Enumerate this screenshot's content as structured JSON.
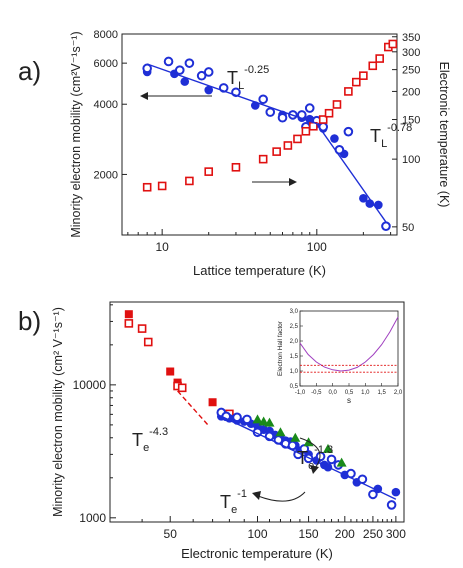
{
  "panels": {
    "a": {
      "label": "a)"
    },
    "b": {
      "label": "b)"
    }
  },
  "colors": {
    "blue": "#1f2fd6",
    "red": "#e01010",
    "green": "#1a8a1a",
    "purple": "#a040c0",
    "axis": "#222222"
  },
  "chart_data": [
    {
      "type": "scatter",
      "panel": "a",
      "xlabel": "Lattice temperature (K)",
      "ylabel": "Minority electron mobility (cm²V⁻¹s⁻¹)",
      "y2label": "Electronic temperature (K)",
      "xscale": "log",
      "yscale": "log",
      "y2scale": "log",
      "xlim": [
        5.5,
        330
      ],
      "ylim": [
        1100,
        8000
      ],
      "y2lim": [
        46,
        360
      ],
      "xticks": [
        10,
        100
      ],
      "yticks": [
        2000,
        4000,
        6000,
        8000
      ],
      "y2ticks": [
        50,
        100,
        150,
        200,
        250,
        300,
        350
      ],
      "annotations": [
        {
          "text": "T",
          "sub": "L",
          "sup": "-0.25"
        },
        {
          "text": "T",
          "sub": "L",
          "sup": "-0.78"
        }
      ],
      "series": [
        {
          "marker": "filled-circle",
          "color": "blue",
          "x": [
            8,
            12,
            14,
            20,
            40,
            60,
            80,
            90,
            100,
            110,
            130,
            150,
            200,
            220,
            250
          ],
          "y": [
            5500,
            5400,
            5000,
            4600,
            3950,
            3600,
            3500,
            3450,
            3300,
            3150,
            2850,
            2450,
            1580,
            1500,
            1480
          ]
        },
        {
          "marker": "open-circle",
          "color": "blue",
          "x": [
            8,
            11,
            13,
            15,
            18,
            20,
            25,
            30,
            45,
            50,
            60,
            70,
            80,
            85,
            90,
            100,
            110,
            140,
            160,
            280
          ],
          "y": [
            5700,
            6100,
            5600,
            6000,
            5300,
            5500,
            4700,
            4500,
            4200,
            3700,
            3500,
            3600,
            3600,
            3200,
            3850,
            3400,
            3200,
            2550,
            3050,
            1200
          ]
        },
        {
          "marker": "open-square",
          "color": "red",
          "axis": "y2",
          "x": [
            8,
            10,
            15,
            20,
            30,
            45,
            55,
            65,
            75,
            85,
            95,
            110,
            120,
            135,
            160,
            180,
            200,
            230,
            255,
            290,
            310
          ],
          "y": [
            75,
            76,
            80,
            88,
            92,
            100,
            108,
            115,
            123,
            133,
            140,
            150,
            160,
            175,
            200,
            220,
            235,
            260,
            280,
            315,
            325
          ]
        },
        {
          "type": "line",
          "color": "blue",
          "x": [
            8,
            100
          ],
          "y": [
            5950,
            3300
          ]
        },
        {
          "type": "line",
          "color": "blue",
          "x": [
            100,
            280
          ],
          "y": [
            3300,
            1250
          ]
        }
      ]
    },
    {
      "type": "scatter",
      "panel": "b",
      "xlabel": "Electronic temperature (K)",
      "ylabel": "Minority electron mobility (cm² V⁻¹s⁻¹)",
      "xscale": "log",
      "yscale": "log",
      "xlim": [
        31,
        320
      ],
      "ylim": [
        930,
        42000
      ],
      "xticks": [
        50,
        100,
        150,
        200,
        250,
        300
      ],
      "yticks": [
        1000,
        10000
      ],
      "annotations": [
        {
          "text": "T",
          "sub": "e",
          "sup": "-4.3"
        },
        {
          "text": "T",
          "sub": "e",
          "sup": "-1.3"
        },
        {
          "text": "T",
          "sub": "e",
          "sup": "-1"
        }
      ],
      "series": [
        {
          "marker": "filled-square",
          "color": "red",
          "x": [
            36,
            50,
            53,
            70
          ],
          "y": [
            34000,
            12600,
            10400,
            7400
          ]
        },
        {
          "marker": "open-square",
          "color": "red",
          "x": [
            36,
            40,
            42,
            53,
            55,
            80
          ],
          "y": [
            29000,
            26500,
            21000,
            9800,
            9500,
            6050
          ]
        },
        {
          "marker": "filled-circle",
          "color": "blue",
          "x": [
            75,
            80,
            85,
            90,
            95,
            100,
            105,
            110,
            115,
            120,
            125,
            130,
            135,
            140,
            150,
            160,
            170,
            175,
            200,
            220,
            260,
            300
          ],
          "y": [
            5800,
            5600,
            5400,
            5300,
            5100,
            4900,
            4600,
            4500,
            4200,
            4000,
            3800,
            3750,
            3500,
            3200,
            3000,
            2700,
            2500,
            2400,
            2100,
            1850,
            1650,
            1560
          ]
        },
        {
          "marker": "open-circle",
          "color": "blue",
          "x": [
            75,
            78,
            85,
            92,
            100,
            110,
            118,
            125,
            132,
            138,
            145,
            150,
            165,
            180,
            190,
            210,
            230,
            250,
            290
          ],
          "y": [
            6200,
            5800,
            5700,
            5500,
            4400,
            4100,
            3850,
            3600,
            3500,
            3000,
            3300,
            2800,
            2900,
            2750,
            2500,
            2150,
            1950,
            1500,
            1250
          ]
        },
        {
          "marker": "filled-triangle",
          "color": "green",
          "x": [
            100,
            105,
            110,
            120,
            135,
            150,
            175,
            195
          ],
          "y": [
            5500,
            5300,
            5200,
            4400,
            4000,
            3700,
            3300,
            2600
          ]
        },
        {
          "type": "line",
          "color": "blue",
          "x": [
            75,
            300
          ],
          "y": [
            5800,
            1380
          ]
        },
        {
          "type": "dashed-line",
          "color": "red",
          "x": [
            53,
            68
          ],
          "y": [
            9000,
            4900
          ]
        }
      ]
    },
    {
      "type": "line",
      "panel": "b-inset",
      "xlabel": "s",
      "ylabel": "Electron Hall factor",
      "xlim": [
        -1.0,
        2.0
      ],
      "ylim": [
        0.5,
        3.0
      ],
      "xtick_labels": [
        "-1,0",
        "-0,5",
        "0,0",
        "0,5",
        "1,0",
        "1,5",
        "2,0"
      ],
      "ytick_labels": [
        "0,5",
        "1,0",
        "1,5",
        "2,0",
        "2,5",
        "3,0"
      ],
      "series": [
        {
          "type": "line",
          "color": "purple",
          "x": [
            -1.0,
            -0.75,
            -0.5,
            -0.25,
            0.0,
            0.25,
            0.5,
            0.75,
            1.0,
            1.25,
            1.5,
            1.75,
            2.0
          ],
          "y": [
            1.93,
            1.55,
            1.3,
            1.13,
            1.04,
            1.0,
            1.03,
            1.12,
            1.3,
            1.55,
            1.88,
            2.3,
            2.8
          ]
        },
        {
          "type": "dashed-line",
          "color": "red",
          "x": [
            -1.0,
            2.0
          ],
          "y": [
            1.19,
            1.19
          ]
        },
        {
          "type": "dashed-line",
          "color": "red",
          "x": [
            -1.0,
            2.0
          ],
          "y": [
            0.96,
            0.96
          ]
        }
      ]
    }
  ]
}
